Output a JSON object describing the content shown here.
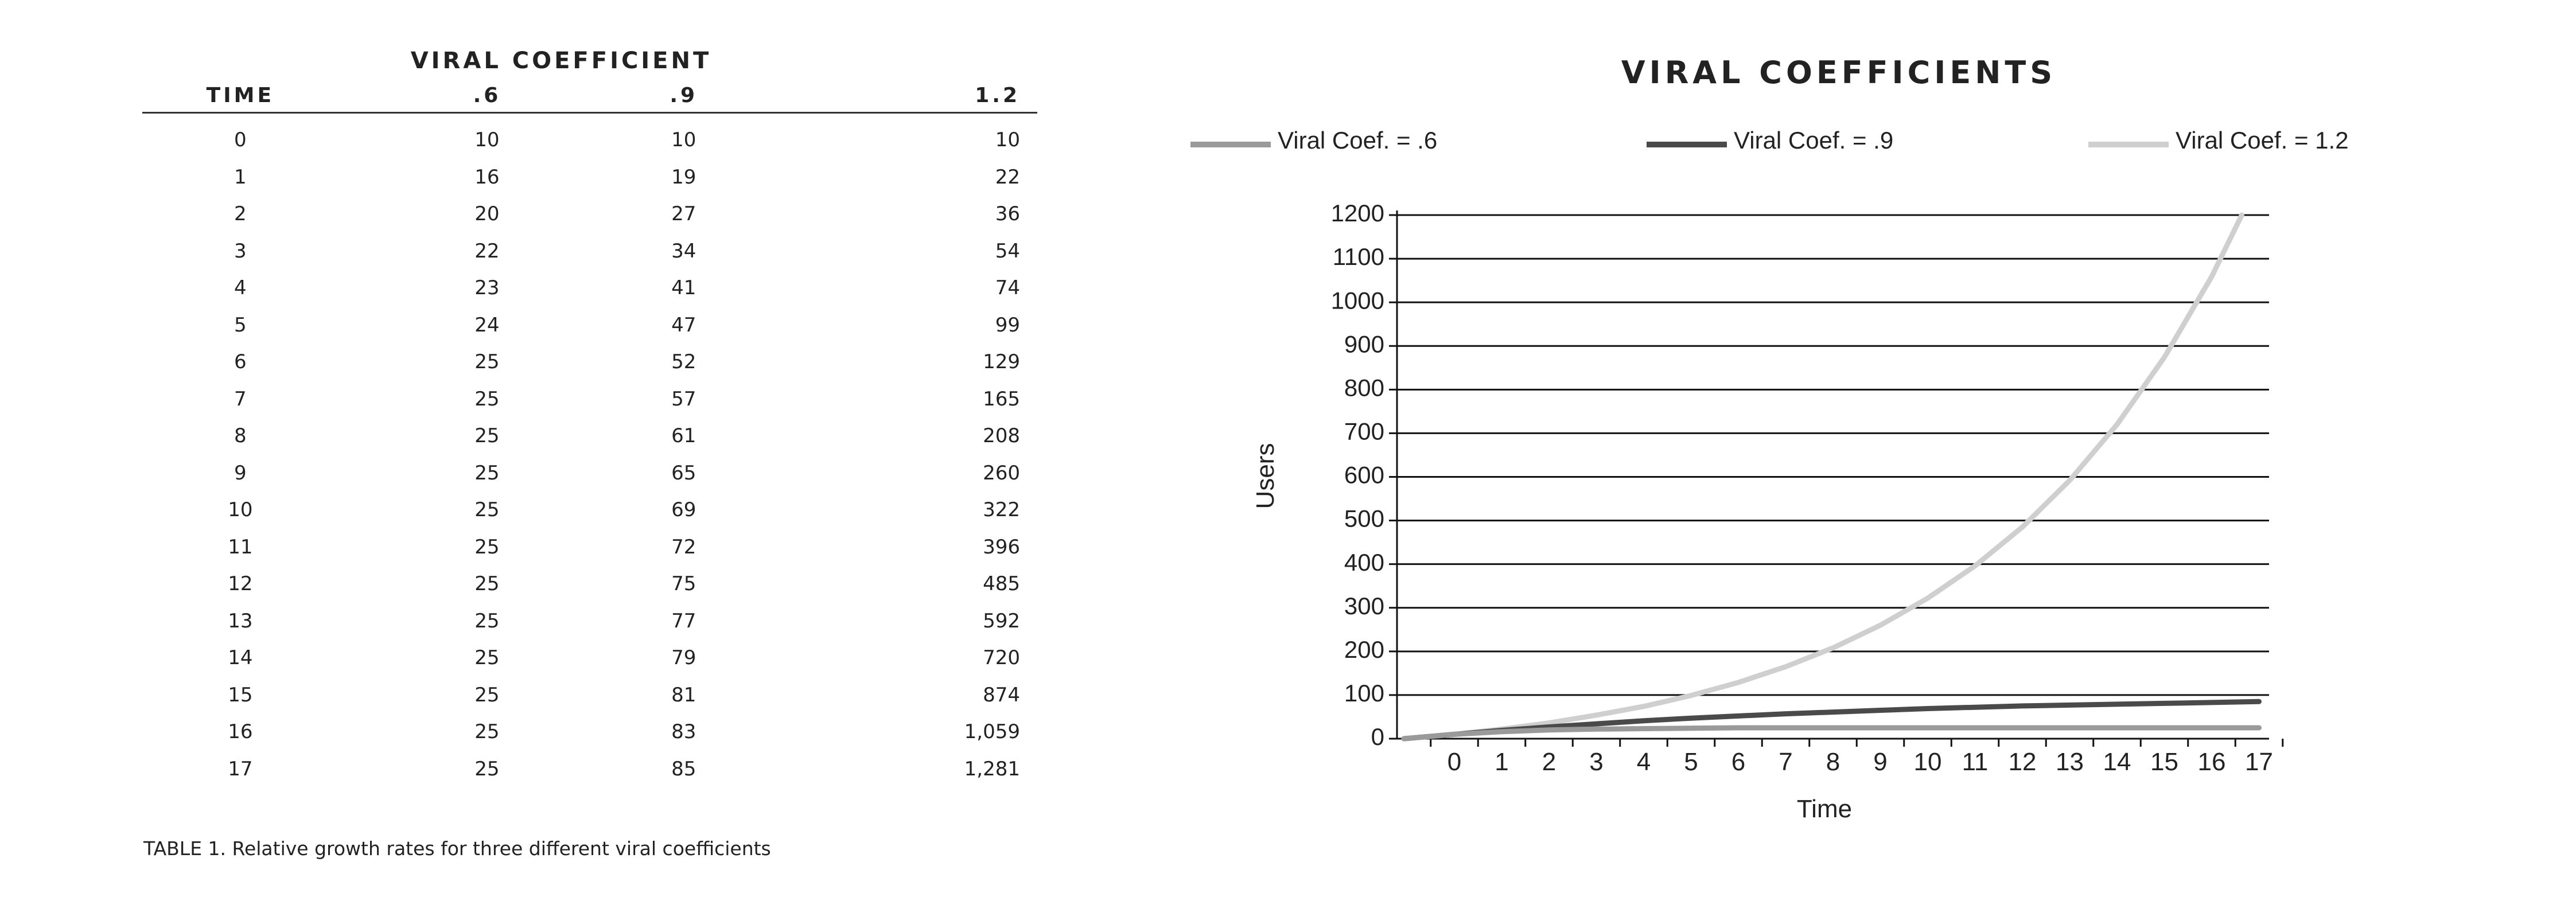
{
  "table": {
    "group_header": "VIRAL COEFFICIENT",
    "columns": [
      "TIME",
      ".6",
      ".9",
      "1.2"
    ],
    "rows": [
      [
        "0",
        "10",
        "10",
        "10"
      ],
      [
        "1",
        "16",
        "19",
        "22"
      ],
      [
        "2",
        "20",
        "27",
        "36"
      ],
      [
        "3",
        "22",
        "34",
        "54"
      ],
      [
        "4",
        "23",
        "41",
        "74"
      ],
      [
        "5",
        "24",
        "47",
        "99"
      ],
      [
        "6",
        "25",
        "52",
        "129"
      ],
      [
        "7",
        "25",
        "57",
        "165"
      ],
      [
        "8",
        "25",
        "61",
        "208"
      ],
      [
        "9",
        "25",
        "65",
        "260"
      ],
      [
        "10",
        "25",
        "69",
        "322"
      ],
      [
        "11",
        "25",
        "72",
        "396"
      ],
      [
        "12",
        "25",
        "75",
        "485"
      ],
      [
        "13",
        "25",
        "77",
        "592"
      ],
      [
        "14",
        "25",
        "79",
        "720"
      ],
      [
        "15",
        "25",
        "81",
        "874"
      ],
      [
        "16",
        "25",
        "83",
        "1,059"
      ],
      [
        "17",
        "25",
        "85",
        "1,281"
      ]
    ],
    "caption": "TABLE 1. Relative growth rates for three different viral coefficients"
  },
  "chart_data": {
    "type": "line",
    "title": "VIRAL COEFFICIENTS",
    "xlabel": "Time",
    "ylabel": "Users",
    "x": [
      0,
      1,
      2,
      3,
      4,
      5,
      6,
      7,
      8,
      9,
      10,
      11,
      12,
      13,
      14,
      15,
      16,
      17
    ],
    "yticks": [
      0,
      100,
      200,
      300,
      400,
      500,
      600,
      700,
      800,
      900,
      1000,
      1100,
      1200
    ],
    "ylim": [
      0,
      1200
    ],
    "grid": true,
    "legend_position": "top",
    "series": [
      {
        "name": "Viral Coef. = .6",
        "color": "#9a9a9a",
        "values": [
          10,
          16,
          20,
          22,
          23,
          24,
          25,
          25,
          25,
          25,
          25,
          25,
          25,
          25,
          25,
          25,
          25,
          25
        ]
      },
      {
        "name": "Viral Coef. = .9",
        "color": "#4a4a4a",
        "values": [
          10,
          19,
          27,
          34,
          41,
          47,
          52,
          57,
          61,
          65,
          69,
          72,
          75,
          77,
          79,
          81,
          83,
          85
        ]
      },
      {
        "name": "Viral Coef. = 1.2",
        "color": "#cfcfcf",
        "values": [
          10,
          22,
          36,
          54,
          74,
          99,
          129,
          165,
          208,
          260,
          322,
          396,
          485,
          592,
          720,
          874,
          1059,
          1281
        ]
      }
    ]
  }
}
